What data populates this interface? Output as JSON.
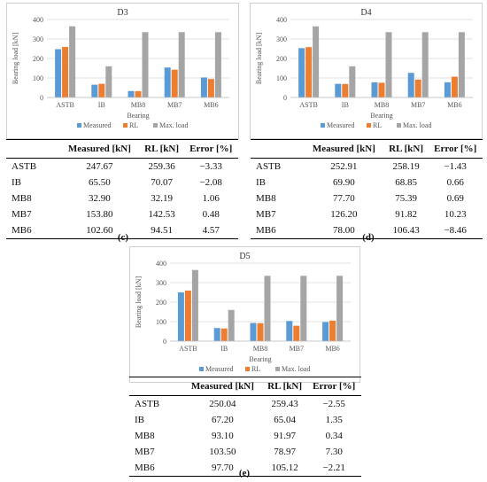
{
  "colors": {
    "measured": "#5b9bd5",
    "rl": "#ed7d31",
    "max": "#a5a5a5",
    "grid": "#d9d9d9"
  },
  "table_headers": [
    "Measured [kN]",
    "RL [kN]",
    "Error [%]"
  ],
  "panels": [
    {
      "caption": "(c)",
      "rows": [
        [
          "ASTB",
          "247.67",
          "259.36",
          "−3.33"
        ],
        [
          "IB",
          "65.50",
          "70.07",
          "−2.08"
        ],
        [
          "MB8",
          "32.90",
          "32.19",
          "1.06"
        ],
        [
          "MB7",
          "153.80",
          "142.53",
          "0.48"
        ],
        [
          "MB6",
          "102.60",
          "94.51",
          "4.57"
        ]
      ]
    },
    {
      "caption": "(d)",
      "rows": [
        [
          "ASTB",
          "252.91",
          "258.19",
          "−1.43"
        ],
        [
          "IB",
          "69.90",
          "68.85",
          "0.66"
        ],
        [
          "MB8",
          "77.70",
          "75.39",
          "0.69"
        ],
        [
          "MB7",
          "126.20",
          "91.82",
          "10.23"
        ],
        [
          "MB6",
          "78.00",
          "106.43",
          "−8.46"
        ]
      ]
    },
    {
      "caption": "(e)",
      "rows": [
        [
          "ASTB",
          "250.04",
          "259.43",
          "−2.55"
        ],
        [
          "IB",
          "67.20",
          "65.04",
          "1.35"
        ],
        [
          "MB8",
          "93.10",
          "91.97",
          "0.34"
        ],
        [
          "MB7",
          "103.50",
          "78.97",
          "7.30"
        ],
        [
          "MB6",
          "97.70",
          "105.12",
          "−2.21"
        ]
      ]
    }
  ],
  "chart_data": [
    {
      "type": "bar",
      "title": "D3",
      "xlabel": "Bearing",
      "ylabel": "Bearing load [kN]",
      "ylim": [
        0,
        400
      ],
      "yticks": [
        "0",
        "100",
        "200",
        "300",
        "400"
      ],
      "grid": true,
      "legend_position": "bottom",
      "categories": [
        "ASTB",
        "IB",
        "MB8",
        "MB7",
        "MB6"
      ],
      "series": [
        {
          "name": "Measured",
          "values": [
            247.67,
            65.5,
            32.9,
            153.8,
            102.6
          ]
        },
        {
          "name": "RL",
          "values": [
            259.36,
            70.07,
            32.19,
            142.53,
            94.51
          ]
        },
        {
          "name": "Max. load",
          "values": [
            365,
            160,
            335,
            335,
            335
          ]
        }
      ]
    },
    {
      "type": "bar",
      "title": "D4",
      "xlabel": "Bearing",
      "ylabel": "Bearing load [kN]",
      "ylim": [
        0,
        400
      ],
      "yticks": [
        "0",
        "100",
        "200",
        "300",
        "400"
      ],
      "grid": true,
      "legend_position": "bottom",
      "categories": [
        "ASTB",
        "IB",
        "MB8",
        "MB7",
        "MB6"
      ],
      "series": [
        {
          "name": "Measured",
          "values": [
            252.91,
            69.9,
            77.7,
            126.2,
            78.0
          ]
        },
        {
          "name": "RL",
          "values": [
            258.19,
            68.85,
            75.39,
            91.82,
            106.43
          ]
        },
        {
          "name": "Max. load",
          "values": [
            365,
            160,
            335,
            335,
            335
          ]
        }
      ]
    },
    {
      "type": "bar",
      "title": "D5",
      "xlabel": "Bearing",
      "ylabel": "Bearing load [kN]",
      "ylim": [
        0,
        400
      ],
      "yticks": [
        "0",
        "100",
        "200",
        "300",
        "400"
      ],
      "grid": true,
      "legend_position": "bottom",
      "categories": [
        "ASTB",
        "IB",
        "MB8",
        "MB7",
        "MB6"
      ],
      "series": [
        {
          "name": "Measured",
          "values": [
            250.04,
            67.2,
            93.1,
            103.5,
            97.7
          ]
        },
        {
          "name": "RL",
          "values": [
            259.43,
            65.04,
            91.97,
            78.97,
            105.12
          ]
        },
        {
          "name": "Max. load",
          "values": [
            365,
            160,
            335,
            335,
            335
          ]
        }
      ]
    }
  ]
}
